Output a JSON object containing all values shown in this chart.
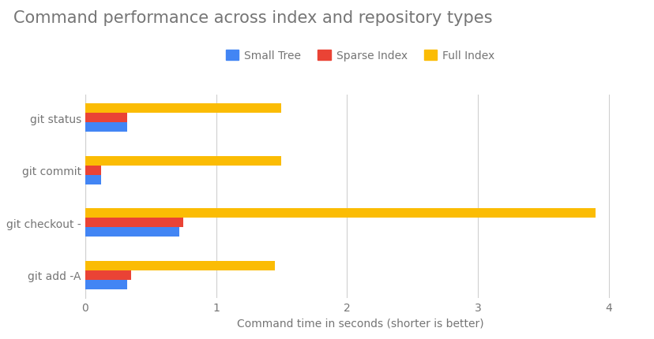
{
  "title": "Command performance across index and repository types",
  "categories": [
    "git status",
    "git commit",
    "git checkout -",
    "git add -A"
  ],
  "series": [
    {
      "label": "Small Tree",
      "color": "#4285F4",
      "values": [
        0.32,
        0.12,
        0.72,
        0.32
      ]
    },
    {
      "label": "Sparse Index",
      "color": "#EA4335",
      "values": [
        0.32,
        0.12,
        0.75,
        0.35
      ]
    },
    {
      "label": "Full Index",
      "color": "#FBBC04",
      "values": [
        1.5,
        1.5,
        3.9,
        1.45
      ]
    }
  ],
  "xlabel": "Command time in seconds (shorter is better)",
  "xlim": [
    0,
    4.2
  ],
  "xticks": [
    0,
    1,
    2,
    3,
    4
  ],
  "background_color": "#ffffff",
  "grid_color": "#d0d0d0",
  "title_color": "#757575",
  "label_color": "#757575",
  "bar_height": 0.18,
  "title_fontsize": 15,
  "axis_fontsize": 10
}
